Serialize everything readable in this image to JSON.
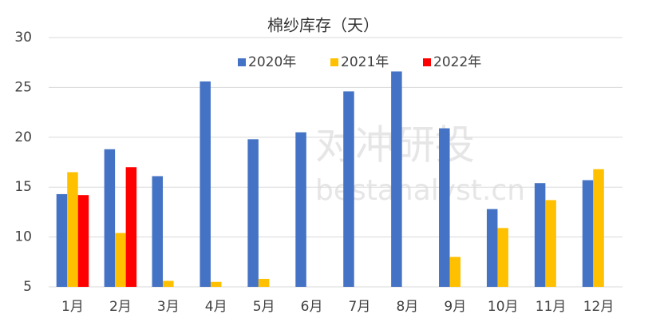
{
  "chart_data": {
    "type": "bar",
    "title": "棉纱库存（天）",
    "watermark": [
      "对冲研投",
      "bestanalyst.cn"
    ],
    "categories": [
      "1月",
      "2月",
      "3月",
      "4月",
      "5月",
      "6月",
      "7月",
      "8月",
      "9月",
      "10月",
      "11月",
      "12月"
    ],
    "series": [
      {
        "name": "2020年",
        "color": "#4472c4",
        "values": [
          14.3,
          18.8,
          16.1,
          25.6,
          19.8,
          20.5,
          24.6,
          26.6,
          20.9,
          12.8,
          15.4,
          15.7
        ]
      },
      {
        "name": "2021年",
        "color": "#ffc000",
        "values": [
          16.5,
          10.4,
          5.6,
          5.5,
          5.8,
          null,
          null,
          null,
          8.0,
          10.9,
          13.7,
          16.8
        ]
      },
      {
        "name": "2022年",
        "color": "#ff0000",
        "values": [
          14.2,
          17.0,
          null,
          null,
          null,
          null,
          null,
          null,
          null,
          null,
          null,
          null
        ]
      }
    ],
    "ylim": [
      5,
      30
    ],
    "yticks": [
      5,
      10,
      15,
      20,
      25,
      30
    ],
    "grid": true,
    "legend": "top"
  }
}
